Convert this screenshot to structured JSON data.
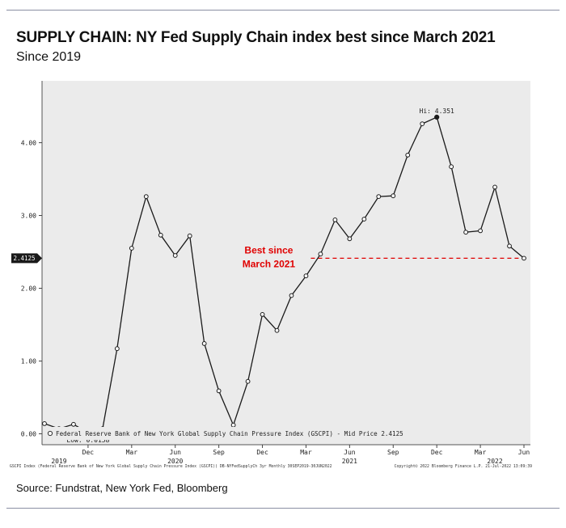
{
  "header": {
    "title": "SUPPLY CHAIN: NY Fed Supply Chain index best since March 2021",
    "subtitle": "Since 2019"
  },
  "footer": {
    "source": "Source: Fundstrat, New York Fed, Bloomberg",
    "fine_print_left": "GSCPI Index (Federal Reserve Bank of New York Global Supply Chain Pressure Index (GSCPI)) DB-NYFedSupplyCh 3yr  Monthly 30SEP2019-30JUN2022",
    "fine_print_right": "Copyright© 2022 Bloomberg Finance L.P.    21-Jul-2022 13:09:39"
  },
  "colors": {
    "plot_bg": "#ebebeb",
    "line": "#1a1a1a",
    "annotation": "#e00000",
    "last_value_bg": "#1a1a1a"
  },
  "chart_data": {
    "type": "line",
    "x": [
      "2019-09",
      "2019-10",
      "2019-11",
      "2019-12",
      "2020-01",
      "2020-02",
      "2020-03",
      "2020-04",
      "2020-05",
      "2020-06",
      "2020-07",
      "2020-08",
      "2020-09",
      "2020-10",
      "2020-11",
      "2020-12",
      "2021-01",
      "2021-02",
      "2021-03",
      "2021-04",
      "2021-05",
      "2021-06",
      "2021-07",
      "2021-08",
      "2021-09",
      "2021-10",
      "2021-11",
      "2021-12",
      "2022-01",
      "2022-02",
      "2022-03",
      "2022-04",
      "2022-05",
      "2022-06"
    ],
    "series": [
      {
        "name": "Federal Reserve Bank of New York Global Supply Chain Pressure Index (GSCPI) - Mid Price 2.4125",
        "values": [
          0.14,
          0.07,
          0.13,
          0.0158,
          0.07,
          1.17,
          2.55,
          3.26,
          2.73,
          2.45,
          2.72,
          1.24,
          0.59,
          0.12,
          0.72,
          1.64,
          1.42,
          1.9,
          2.17,
          2.47,
          2.94,
          2.68,
          2.95,
          3.26,
          3.27,
          3.83,
          4.26,
          4.351,
          3.67,
          2.77,
          2.79,
          3.39,
          2.58,
          2.4125
        ]
      }
    ],
    "ylim": [
      -0.15,
      4.85
    ],
    "y_ticks": [
      0,
      1,
      2,
      3,
      4
    ],
    "y_tick_labels": [
      "0.00",
      "1.00",
      "2.00",
      "3.00",
      "4.00"
    ],
    "x_month_ticks": [
      {
        "x": "2019-12",
        "label": "Dec"
      },
      {
        "x": "2020-03",
        "label": "Mar"
      },
      {
        "x": "2020-06",
        "label": "Jun"
      },
      {
        "x": "2020-09",
        "label": "Sep"
      },
      {
        "x": "2020-12",
        "label": "Dec"
      },
      {
        "x": "2021-03",
        "label": "Mar"
      },
      {
        "x": "2021-06",
        "label": "Jun"
      },
      {
        "x": "2021-09",
        "label": "Sep"
      },
      {
        "x": "2021-12",
        "label": "Dec"
      },
      {
        "x": "2022-03",
        "label": "Mar"
      },
      {
        "x": "2022-06",
        "label": "Jun"
      }
    ],
    "x_year_labels": [
      {
        "x": "2019-10",
        "label": "2019"
      },
      {
        "x": "2020-06",
        "label": "2020"
      },
      {
        "x": "2021-06",
        "label": "2021"
      },
      {
        "x": "2022-04",
        "label": "2022"
      }
    ],
    "annotations": {
      "high_label": "Hi: 4.351",
      "low_label": "Low: 0.0158",
      "last_value_label": "2.4125",
      "best_since_line1": "Best since",
      "best_since_line2": "March 2021",
      "best_since_from": "2021-04",
      "best_since_value": 2.4125
    },
    "legend": "Federal Reserve Bank of New York Global Supply Chain Pressure Index (GSCPI) - Mid Price 2.4125",
    "legend_position": "bottom-left",
    "grid": false
  }
}
